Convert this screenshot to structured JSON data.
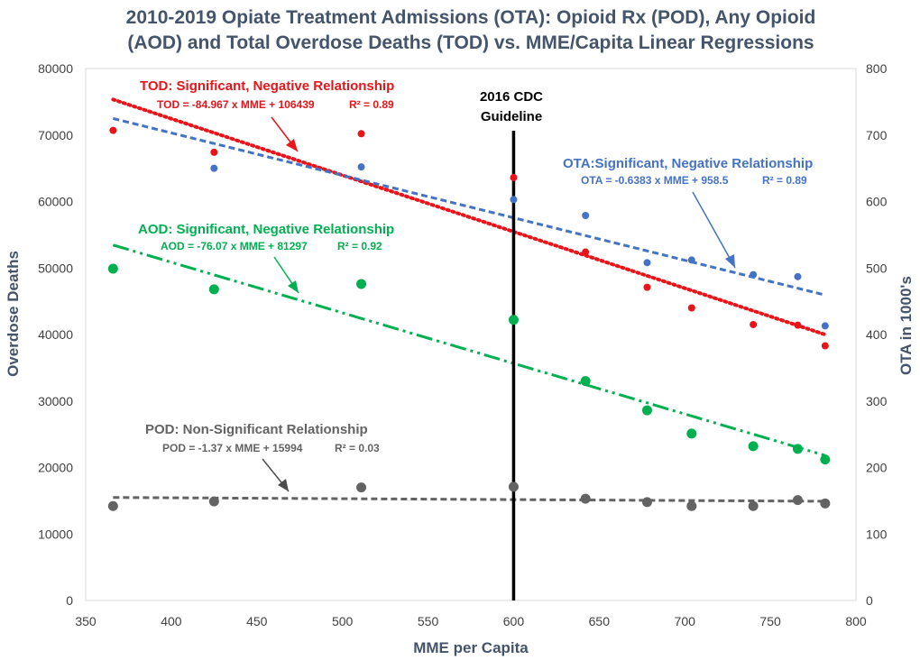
{
  "chart_data": {
    "type": "scatter",
    "title_lines": [
      "2010-2019 Opiate Treatment Admissions (OTA): Opioid Rx (POD), Any Opioid",
      "(AOD) and Total Overdose Deaths (TOD) vs. MME/Capita Linear Regressions"
    ],
    "xlabel": "MME per Capita",
    "ylabel_left": "Overdose Deaths",
    "ylabel_right": "OTA in 1000's",
    "xlim": [
      350,
      800
    ],
    "ylim_left": [
      0,
      80000
    ],
    "ylim_right": [
      0,
      800
    ],
    "x_ticks": [
      "350",
      "400",
      "450",
      "500",
      "550",
      "600",
      "650",
      "700",
      "750",
      "800"
    ],
    "y_left_ticks": [
      "0",
      "10000",
      "20000",
      "30000",
      "40000",
      "50000",
      "60000",
      "70000",
      "80000"
    ],
    "y_right_ticks": [
      "0",
      "100",
      "200",
      "300",
      "400",
      "500",
      "600",
      "700",
      "800"
    ],
    "x": [
      366,
      425,
      511,
      600,
      642,
      678,
      704,
      740,
      766,
      782
    ],
    "series": [
      {
        "name": "TOD",
        "axis": "left",
        "color": "#e8141a",
        "marker_size": "small",
        "values": [
          70700,
          67400,
          70200,
          63600,
          52400,
          47100,
          44000,
          41500,
          41400,
          38300
        ],
        "trend": {
          "slope": -84.967,
          "intercept": 106439,
          "style": "dotted"
        }
      },
      {
        "name": "OTA",
        "axis": "right",
        "color": "#4472c4",
        "marker_size": "small",
        "values": [
          null,
          650,
          652,
          603,
          579,
          508,
          512,
          490,
          487,
          413
        ],
        "trend": {
          "slope": -0.6383,
          "intercept": 958.5,
          "style": "dashed"
        }
      },
      {
        "name": "AOD",
        "axis": "left",
        "color": "#00b050",
        "marker_size": "large",
        "values": [
          49900,
          46800,
          47600,
          42200,
          33000,
          28600,
          25100,
          23200,
          22800,
          21200
        ],
        "trend": {
          "slope": -76.07,
          "intercept": 81297,
          "style": "dashdotdot"
        }
      },
      {
        "name": "POD",
        "axis": "left",
        "color": "#636363",
        "marker_size": "large",
        "values": [
          14200,
          14900,
          17000,
          17100,
          15300,
          14800,
          14200,
          14200,
          15100,
          14600
        ],
        "trend": {
          "slope": -1.37,
          "intercept": 15994,
          "style": "dashed"
        }
      }
    ],
    "cdc_guideline_x": 600,
    "annotations": [
      {
        "key": "tod",
        "title": "TOD: Significant, Negative Relationship",
        "equation": "TOD = -84.967 x MME + 106439",
        "r2": "R² = 0.89",
        "color": "#e8141a"
      },
      {
        "key": "ota",
        "title": "OTA:Significant, Negative Relationship",
        "equation": "OTA = -0.6383 x MME + 958.5",
        "r2": "R² = 0.89",
        "color": "#4472c4"
      },
      {
        "key": "aod",
        "title": "AOD:  Significant, Negative Relationship",
        "equation": "AOD = -76.07 x MME + 81297",
        "r2": "R² = 0.92",
        "color": "#00b050"
      },
      {
        "key": "pod",
        "title": "POD: Non-Significant Relationship",
        "equation": "POD = -1.37 x MME + 15994",
        "r2": "R² = 0.03",
        "color": "#636363"
      }
    ],
    "cdc_label_lines": [
      "2016 CDC",
      "Guideline"
    ],
    "grid": false
  }
}
